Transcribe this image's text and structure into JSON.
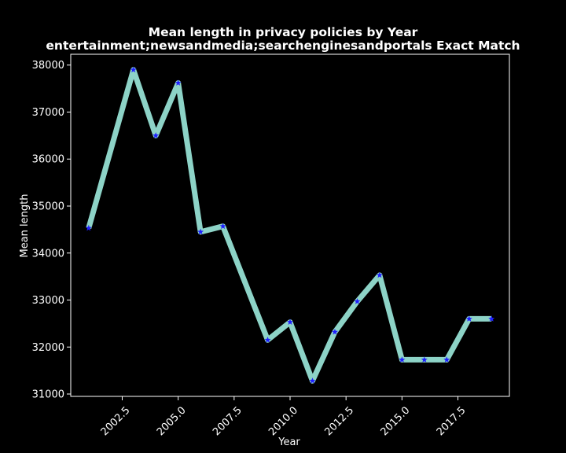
{
  "chart_data": {
    "type": "line",
    "title": "Mean length in privacy policies by Year",
    "subtitle": "entertainment;newsandmedia;searchenginesandportals Exact Match",
    "xlabel": "Year",
    "ylabel": "Mean length",
    "xlim": [
      2000.2,
      2019.8
    ],
    "ylim": [
      30950,
      38230
    ],
    "x_ticks": [
      2002.5,
      2005.0,
      2007.5,
      2010.0,
      2012.5,
      2015.0,
      2017.5
    ],
    "x_tick_labels": [
      "2002.5",
      "2005.0",
      "2007.5",
      "2010.0",
      "2012.5",
      "2015.0",
      "2017.5"
    ],
    "y_ticks": [
      31000,
      32000,
      33000,
      34000,
      35000,
      36000,
      37000,
      38000
    ],
    "y_tick_labels": [
      "31000",
      "32000",
      "33000",
      "34000",
      "35000",
      "36000",
      "37000",
      "38000"
    ],
    "grid": false,
    "series": [
      {
        "x": [
          2001,
          2003,
          2004,
          2005,
          2006,
          2007,
          2009,
          2010,
          2011,
          2012,
          2013,
          2014,
          2015,
          2016,
          2017,
          2018,
          2019
        ],
        "y": [
          34530,
          37900,
          36500,
          37620,
          34450,
          34570,
          32150,
          32530,
          31280,
          32320,
          32970,
          33530,
          31730,
          31730,
          31730,
          32600,
          32600
        ],
        "line_color": "#8dd3c7",
        "marker": "star",
        "marker_color": "#1f1fff"
      }
    ]
  }
}
